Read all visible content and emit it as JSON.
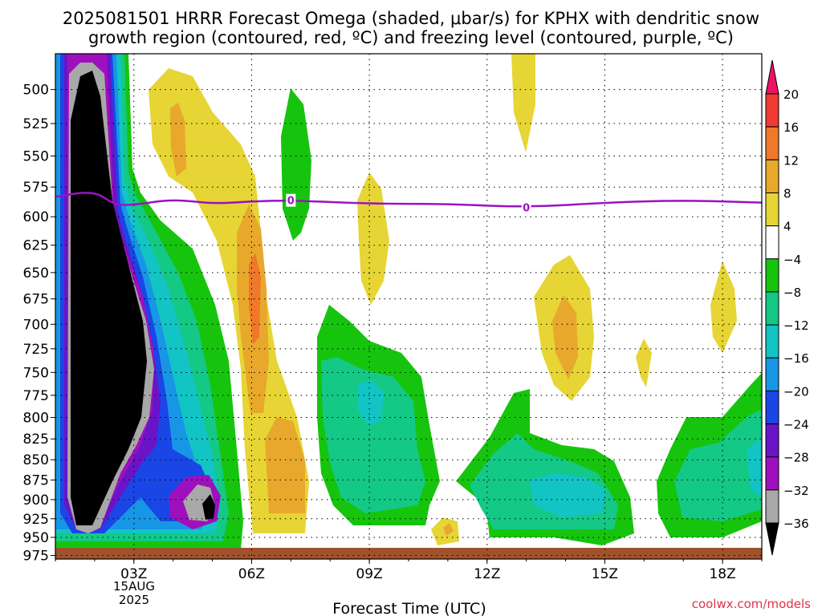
{
  "chart_data": {
    "type": "heatmap",
    "title_line1": "2025081501 HRRR Forecast Omega (shaded, μbar/s) for KPHX with dendritic snow",
    "title_line2": "growth region (contoured, red, ºC) and freezing level (contoured, purple, ºC)",
    "xlabel": "Forecast Time (UTC)",
    "x_ticks": [
      "03Z",
      "06Z",
      "09Z",
      "12Z",
      "15Z",
      "18Z"
    ],
    "x_tick_hours": [
      3,
      6,
      9,
      12,
      15,
      18
    ],
    "xlim_hours": [
      1,
      19
    ],
    "x_date_label": [
      "15AUG",
      "2025"
    ],
    "y_ticks": [
      500,
      525,
      550,
      575,
      600,
      625,
      650,
      675,
      700,
      725,
      750,
      775,
      800,
      825,
      850,
      875,
      900,
      925,
      950,
      975
    ],
    "ylim_hpa": [
      475,
      980
    ],
    "y_scale": "log",
    "grid": true,
    "colorbar": {
      "labels": [
        "20",
        "16",
        "12",
        "8",
        "4",
        "−4",
        "−8",
        "−12",
        "−16",
        "−20",
        "−24",
        "−28",
        "−32",
        "−36"
      ],
      "colors": [
        "#ed1164",
        "#f03a32",
        "#f0782a",
        "#e8a82c",
        "#e6d534",
        "#ffffff",
        "#16c40e",
        "#14c886",
        "#12c4c4",
        "#1896e6",
        "#1a46e6",
        "#6a14c8",
        "#9e10be",
        "#a8a8a8",
        "#000000"
      ]
    },
    "freezing_level": {
      "label": "0",
      "color": "#9a12c2",
      "points": [
        [
          1,
          583
        ],
        [
          2,
          578
        ],
        [
          2.5,
          590
        ],
        [
          3,
          590
        ],
        [
          4,
          585
        ],
        [
          5,
          589
        ],
        [
          6,
          587
        ],
        [
          7,
          586
        ],
        [
          9,
          589
        ],
        [
          11,
          589
        ],
        [
          13,
          592
        ],
        [
          15,
          588
        ],
        [
          17,
          586
        ],
        [
          19,
          588
        ]
      ]
    },
    "ground_color": "#a0522d",
    "watermark": "coolwx.com/models"
  }
}
